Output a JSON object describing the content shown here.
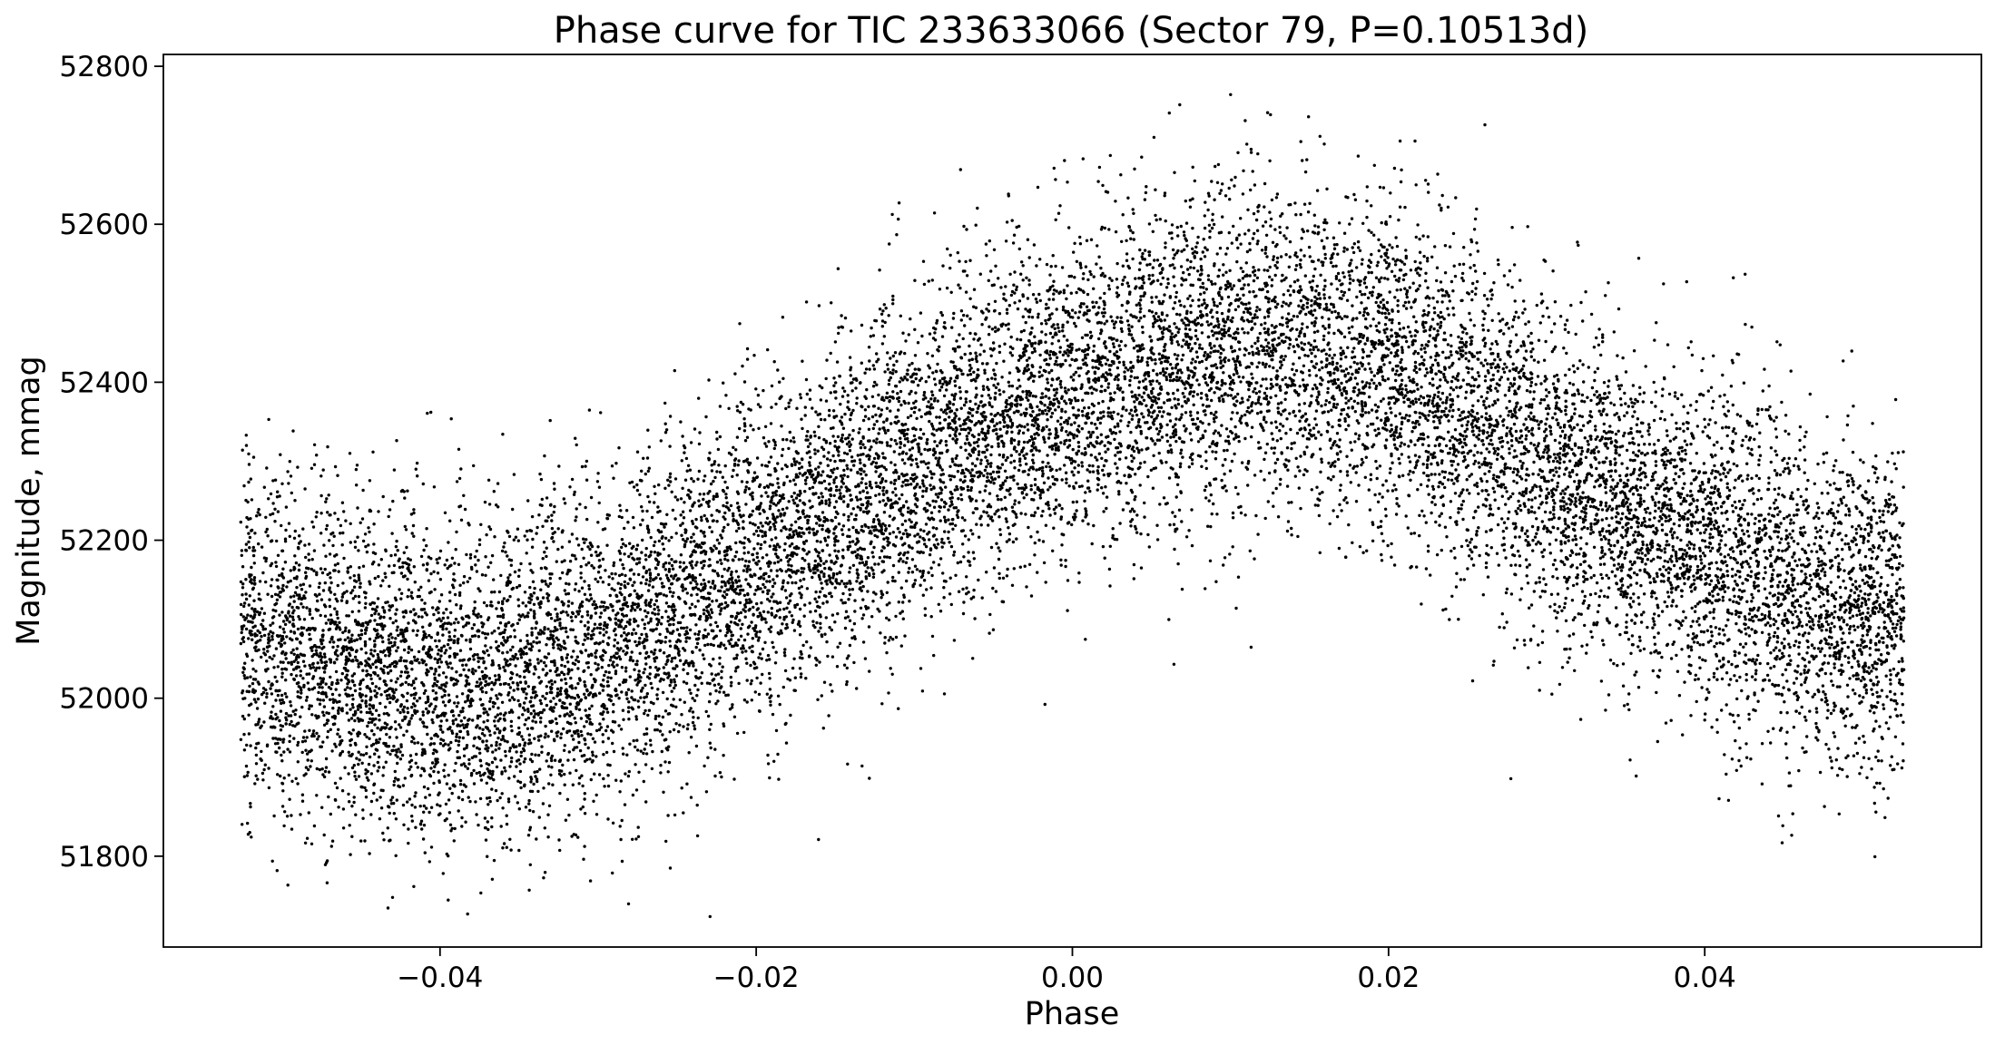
{
  "chart_data": {
    "type": "scatter",
    "title": "Phase curve for TIC 233633066 (Sector 79, P=0.10513d)",
    "xlabel": "Phase",
    "ylabel": "Magnitude, mmag",
    "xlim": [
      -0.0575,
      0.0575
    ],
    "ylim": [
      51685,
      52815
    ],
    "xticks": [
      -0.04,
      -0.02,
      0.0,
      0.02,
      0.04
    ],
    "xtick_labels": [
      "−0.04",
      "−0.02",
      "0.00",
      "0.02",
      "0.04"
    ],
    "yticks": [
      51800,
      52000,
      52200,
      52400,
      52600,
      52800
    ],
    "ytick_labels": [
      "51800",
      "52000",
      "52200",
      "52400",
      "52600",
      "52800"
    ],
    "grid": false,
    "legend": "none",
    "marker_color": "#000000",
    "phase_range": [
      -0.0526,
      0.0526
    ],
    "point_count": 16000,
    "trend": {
      "x": [
        -0.0526,
        -0.045,
        -0.04,
        -0.035,
        -0.03,
        -0.025,
        -0.02,
        -0.015,
        -0.01,
        -0.005,
        0.0,
        0.005,
        0.01,
        0.015,
        0.02,
        0.025,
        0.03,
        0.035,
        0.04,
        0.045,
        0.0526
      ],
      "y": [
        52070,
        52040,
        52020,
        52030,
        52060,
        52110,
        52170,
        52240,
        52300,
        52350,
        52390,
        52420,
        52440,
        52440,
        52420,
        52370,
        52300,
        52240,
        52190,
        52140,
        52100
      ]
    },
    "scatter_spread_sd": 105
  }
}
